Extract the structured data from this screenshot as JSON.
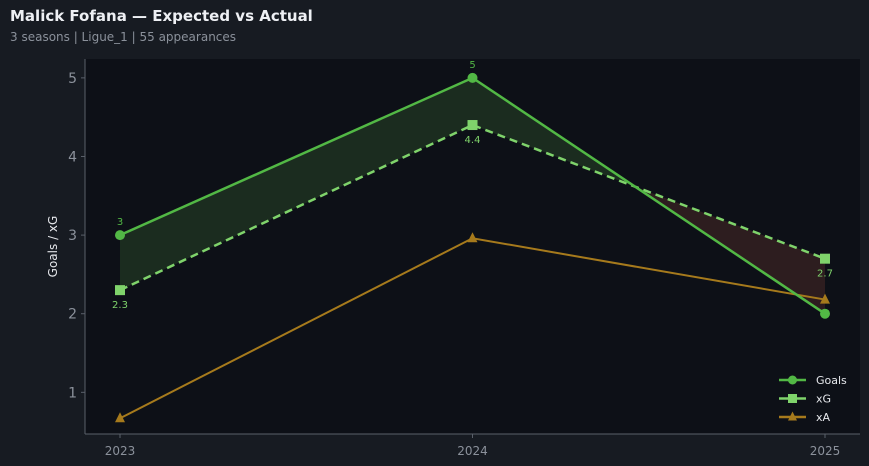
{
  "header": {
    "title": "Malick Fofana — Expected vs Actual",
    "subtitle": "3 seasons | Ligue_1 | 55 appearances"
  },
  "chart_data": {
    "type": "line",
    "x": [
      "2023",
      "2024",
      "2025"
    ],
    "ylabel": "Goals / xG",
    "xlabel": "",
    "ylim": [
      0.47,
      5.24
    ],
    "yticks": [
      1,
      2,
      3,
      4,
      5
    ],
    "grid": false,
    "legend": "bottom-right",
    "series": [
      {
        "name": "Goals",
        "values": [
          3,
          5,
          2
        ],
        "color": "#52b845",
        "marker": "circle",
        "style": "solid",
        "labels": [
          "3",
          "5",
          ""
        ]
      },
      {
        "name": "xG",
        "values": [
          2.3,
          4.4,
          2.7
        ],
        "color": "#7fd36b",
        "marker": "square",
        "style": "dashed",
        "labels": [
          "2.3",
          "4.4",
          "2.7"
        ]
      },
      {
        "name": "xA",
        "values": [
          0.67,
          2.96,
          2.18
        ],
        "color": "#a67a1c",
        "marker": "triangle",
        "style": "solid",
        "labels": [
          "",
          "",
          ""
        ]
      }
    ],
    "fill_over_color": "#1b2c1f",
    "fill_under_color": "#2d1d1f"
  }
}
